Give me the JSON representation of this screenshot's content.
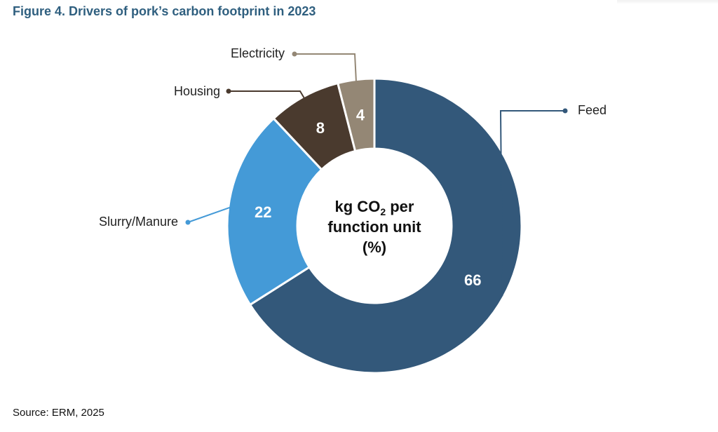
{
  "title": "Figure 4. Drivers of pork’s carbon footprint in 2023",
  "source": "Source: ERM, 2025",
  "chart_data": {
    "type": "pie",
    "variant": "donut",
    "center_label": {
      "line1_prefix": "kg CO",
      "line1_subscript": "2",
      "line1_suffix": " per",
      "line2": "function unit",
      "line3": "(%)"
    },
    "slices": [
      {
        "name": "Feed",
        "value": 66,
        "value_label": "66",
        "color": "#33587a"
      },
      {
        "name": "Slurry/Manure",
        "value": 22,
        "value_label": "22",
        "color": "#449ad7"
      },
      {
        "name": "Housing",
        "value": 8,
        "value_label": "8",
        "color": "#4a3a2e"
      },
      {
        "name": "Electricity",
        "value": 4,
        "value_label": "4",
        "color": "#948775"
      }
    ]
  }
}
